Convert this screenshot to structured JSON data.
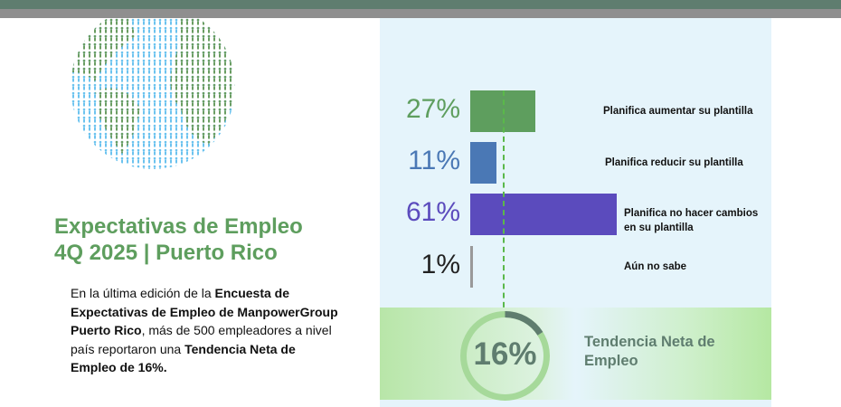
{
  "colors": {
    "brand_green": "#5e9e5e",
    "banner": "#5f7d6f",
    "panel": "#e5f4fb",
    "increase": "#5e9e5e",
    "decrease": "#4a78b5",
    "no_change": "#5b4bbd",
    "unknown": "#999999"
  },
  "title": {
    "line1": "Expectativas de Empleo",
    "line2": "4Q 2025 | Puerto Rico"
  },
  "description": {
    "t1": "En la última edición de la ",
    "b1": "Encuesta de Expectativas de Empleo de ManpowerGroup Puerto Rico",
    "t2": ", más de 500 empleadores a nivel país reportaron una ",
    "b2": "Tendencia Neta de Empleo de 16%."
  },
  "chart_data": {
    "type": "bar",
    "categories": [
      "Planifica aumentar su plantilla",
      "Planifica reducir su plantilla",
      "Planifica no hacer cambios en su plantilla",
      "Aún no sabe"
    ],
    "values": [
      27,
      11,
      61,
      1
    ],
    "labels": [
      "27%",
      "11%",
      "61%",
      "1%"
    ]
  },
  "net": {
    "value": 16,
    "label": "16%",
    "caption": "Tendencia Neta de Empleo"
  }
}
